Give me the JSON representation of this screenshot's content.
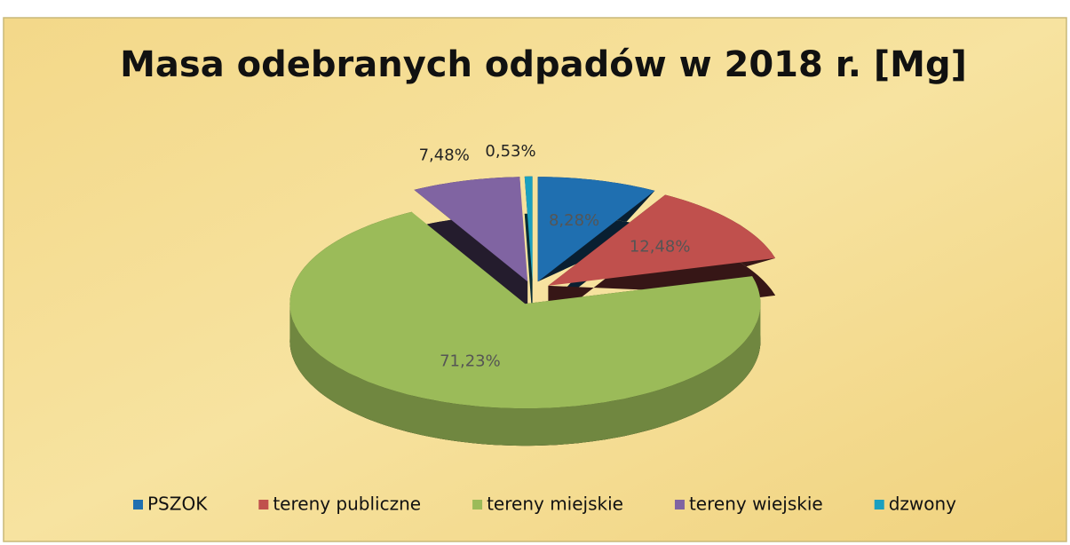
{
  "chart_data": {
    "type": "pie",
    "title": "Masa odebranych odpadów w 2018 r. [Mg]",
    "categories": [
      "PSZOK",
      "tereny publiczne",
      "tereny miejskie",
      "tereny wiejskie",
      "dzwony"
    ],
    "values": [
      8.28,
      12.48,
      71.23,
      7.48,
      0.53
    ],
    "value_labels": [
      "8,28%",
      "12,48%",
      "71,23%",
      "7,48%",
      "0,53%"
    ],
    "colors": [
      "#1f6fb0",
      "#c0504d",
      "#9bbb59",
      "#8064a2",
      "#1aa0c0"
    ],
    "legend": "bottom"
  }
}
